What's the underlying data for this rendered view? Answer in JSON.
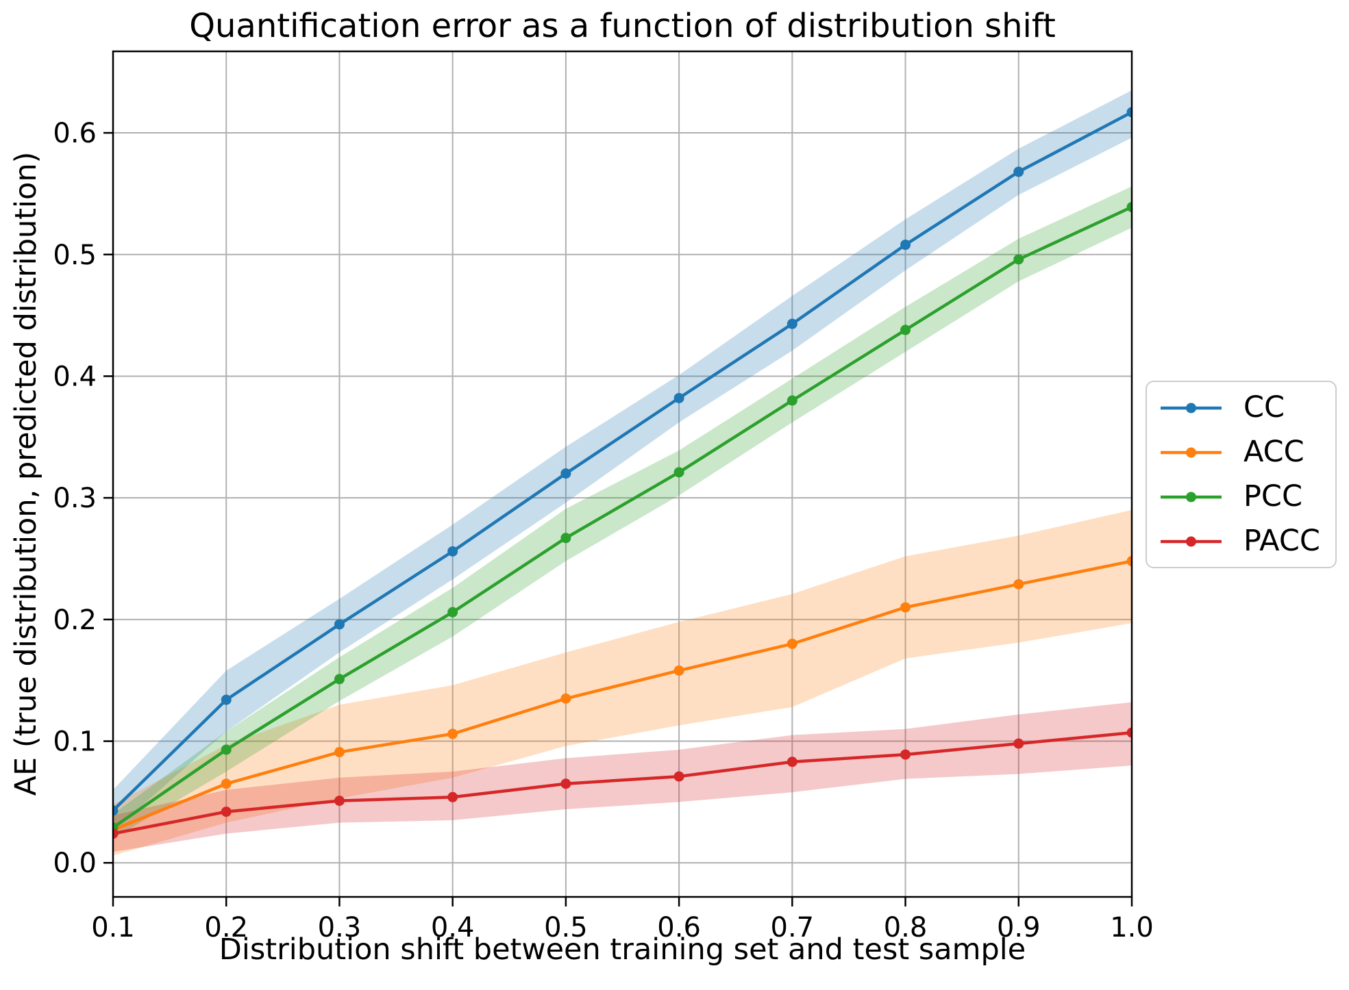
{
  "title": "Quantification error as a function of distribution shift",
  "chart_data": {
    "type": "line",
    "title": "Quantification error as a function of distribution shift",
    "xlabel": "Distribution shift between training set and test sample",
    "ylabel": "AE (true distribution, predicted distribution)",
    "x": [
      0.1,
      0.2,
      0.3,
      0.4,
      0.5,
      0.6,
      0.7,
      0.8,
      0.9,
      1.0
    ],
    "series": [
      {
        "name": "CC",
        "color": "#1f77b4",
        "values": [
          0.043,
          0.134,
          0.196,
          0.256,
          0.32,
          0.382,
          0.443,
          0.508,
          0.568,
          0.617
        ],
        "band_lower": [
          0.026,
          0.108,
          0.173,
          0.233,
          0.296,
          0.362,
          0.421,
          0.487,
          0.549,
          0.596
        ],
        "band_upper": [
          0.06,
          0.158,
          0.217,
          0.278,
          0.342,
          0.401,
          0.466,
          0.529,
          0.587,
          0.635
        ]
      },
      {
        "name": "ACC",
        "color": "#ff7f0e",
        "values": [
          0.027,
          0.065,
          0.091,
          0.106,
          0.135,
          0.158,
          0.18,
          0.21,
          0.229,
          0.248
        ],
        "band_lower": [
          0.006,
          0.033,
          0.053,
          0.07,
          0.096,
          0.113,
          0.128,
          0.168,
          0.181,
          0.197
        ],
        "band_upper": [
          0.048,
          0.097,
          0.13,
          0.146,
          0.173,
          0.198,
          0.221,
          0.252,
          0.269,
          0.29
        ]
      },
      {
        "name": "PCC",
        "color": "#2ca02c",
        "values": [
          0.029,
          0.093,
          0.151,
          0.206,
          0.267,
          0.321,
          0.38,
          0.438,
          0.496,
          0.539
        ],
        "band_lower": [
          0.02,
          0.075,
          0.133,
          0.186,
          0.248,
          0.302,
          0.362,
          0.42,
          0.478,
          0.522
        ],
        "band_upper": [
          0.04,
          0.108,
          0.169,
          0.226,
          0.291,
          0.339,
          0.398,
          0.457,
          0.513,
          0.556
        ]
      },
      {
        "name": "PACC",
        "color": "#d62728",
        "values": [
          0.024,
          0.042,
          0.051,
          0.054,
          0.065,
          0.071,
          0.083,
          0.089,
          0.098,
          0.107
        ],
        "band_lower": [
          0.009,
          0.024,
          0.033,
          0.035,
          0.044,
          0.05,
          0.058,
          0.069,
          0.073,
          0.08
        ],
        "band_upper": [
          0.039,
          0.06,
          0.07,
          0.075,
          0.086,
          0.093,
          0.105,
          0.11,
          0.122,
          0.132
        ]
      }
    ],
    "xlim": [
      0.1,
      1.0
    ],
    "ylim": [
      -0.028,
      0.667
    ],
    "xticks": {
      "values": [
        0.1,
        0.2,
        0.3,
        0.4,
        0.5,
        0.6,
        0.7,
        0.8,
        0.9,
        1.0
      ],
      "labels": [
        "0.1",
        "0.2",
        "0.3",
        "0.4",
        "0.5",
        "0.6",
        "0.7",
        "0.8",
        "0.9",
        "1.0"
      ]
    },
    "yticks": {
      "values": [
        0.0,
        0.1,
        0.2,
        0.3,
        0.4,
        0.5,
        0.6
      ],
      "labels": [
        "0.0",
        "0.1",
        "0.2",
        "0.3",
        "0.4",
        "0.5",
        "0.6"
      ]
    },
    "grid": true,
    "legend_position": "right of axes, vertically centered",
    "style": {
      "grid_color": "#b0b0b0",
      "spine_color": "#000000",
      "background": "#ffffff",
      "band_opacity": 0.25,
      "line_width": 4.5,
      "marker_radius": 7.5
    }
  }
}
